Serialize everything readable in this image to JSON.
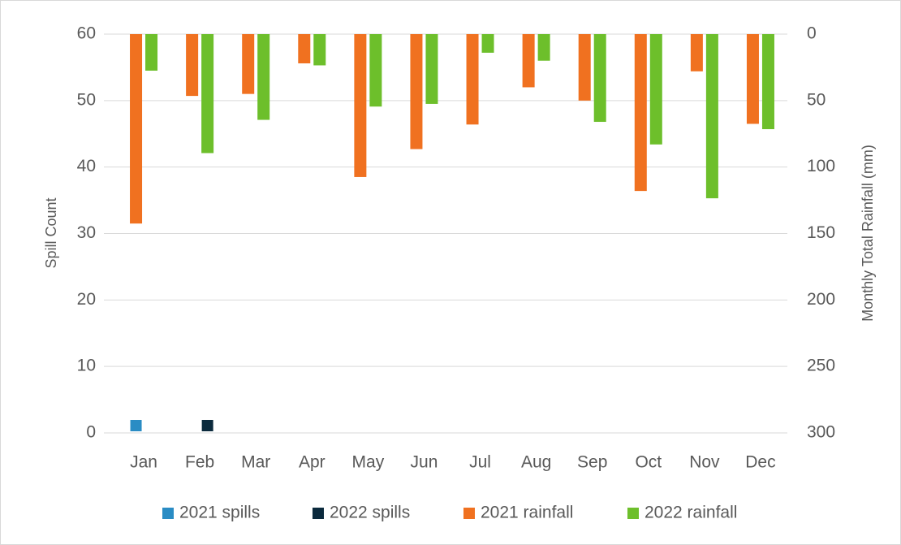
{
  "chart_data": {
    "type": "combo",
    "categories": [
      "Jan",
      "Feb",
      "Mar",
      "Apr",
      "May",
      "Jun",
      "Jul",
      "Aug",
      "Sep",
      "Oct",
      "Nov",
      "Dec"
    ],
    "y_label": "Spill Count",
    "y2_label": "Monthly Total Rainfall (mm)",
    "ylim": [
      0,
      60
    ],
    "yticks": [
      0,
      10,
      20,
      30,
      40,
      50,
      60
    ],
    "y2lim": [
      0,
      300
    ],
    "y2ticks": [
      0,
      50,
      100,
      150,
      200,
      250,
      300
    ],
    "y2_inverted": true,
    "grid": true,
    "legend": "bottom",
    "series": [
      {
        "name": "2021 spills",
        "type": "scatter",
        "color": "#2a8cc4",
        "values": [
          1.1,
          null,
          null,
          null,
          null,
          null,
          null,
          null,
          null,
          null,
          null,
          null
        ]
      },
      {
        "name": "2022 spills",
        "type": "scatter",
        "color": "#0b2a3d",
        "values": [
          null,
          1.1,
          null,
          null,
          null,
          null,
          null,
          null,
          null,
          null,
          null,
          null
        ]
      },
      {
        "name": "2021 rainfall",
        "type": "bar",
        "axis": "y2",
        "color": "#f07120",
        "values": [
          142.5,
          46.5,
          45,
          22,
          107.5,
          86.5,
          68,
          40,
          50,
          118,
          28,
          67.5
        ]
      },
      {
        "name": "2022 rainfall",
        "type": "bar",
        "axis": "y2",
        "color": "#6dbf2b",
        "values": [
          27.5,
          89.5,
          64.5,
          23.5,
          54.5,
          52.5,
          14,
          20,
          66,
          83,
          123.5,
          71.5
        ]
      }
    ]
  }
}
